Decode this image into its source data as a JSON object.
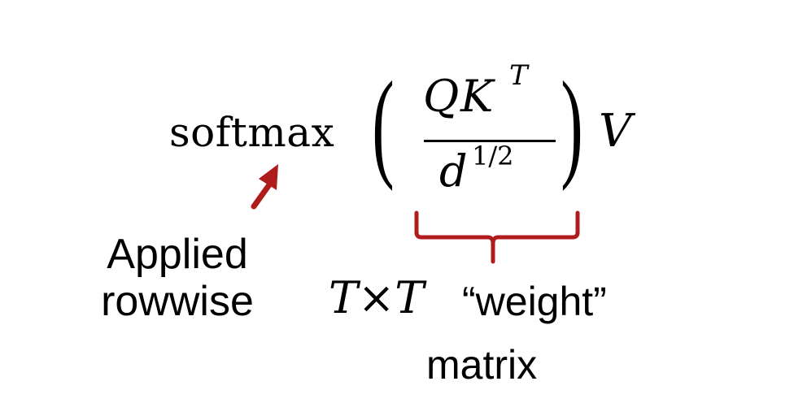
{
  "formula": {
    "function_name": "softmax",
    "paren_left": "(",
    "paren_right": ")",
    "numerator_q": "Q",
    "numerator_k": "K",
    "numerator_superscript": "T",
    "denominator_base": "d",
    "denominator_exponent": "1/2",
    "trailing_variable": "V"
  },
  "annotations": {
    "softmax_note_line1": "Applied",
    "softmax_note_line2": "rowwise",
    "brace_math": "T×T",
    "brace_text": "“weight”",
    "brace_text_line2": "matrix"
  },
  "colors": {
    "accent": "#b01c1c",
    "text": "#000000",
    "background": "#ffffff"
  }
}
